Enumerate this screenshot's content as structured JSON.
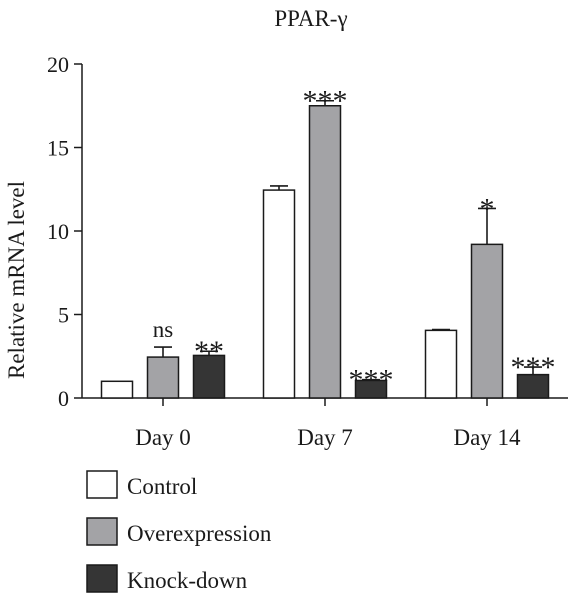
{
  "chart_data": {
    "type": "bar",
    "title": "PPAR-γ",
    "xlabel": "",
    "ylabel": "Relative mRNA level",
    "ylim": [
      0,
      20
    ],
    "yticks": [
      0,
      5,
      10,
      15,
      20
    ],
    "categories": [
      "Day 0",
      "Day 7",
      "Day 14"
    ],
    "series": [
      {
        "name": "Control",
        "color": "#ffffff",
        "values": [
          1.0,
          12.45,
          4.05
        ],
        "errors": [
          0.0,
          0.25,
          0.05
        ],
        "significance": [
          "",
          "",
          ""
        ]
      },
      {
        "name": "Overexpression",
        "color": "#a3a3a6",
        "values": [
          2.45,
          17.5,
          9.2
        ],
        "errors": [
          0.6,
          0.3,
          2.15
        ],
        "significance": [
          "ns",
          "***",
          "*"
        ]
      },
      {
        "name": "Knock-down",
        "color": "#353535",
        "values": [
          2.55,
          1.05,
          1.4
        ],
        "errors": [
          0.25,
          0.05,
          0.45
        ],
        "significance": [
          "**",
          "***",
          "***"
        ]
      }
    ],
    "legend_position": "bottom-left",
    "grid": false
  }
}
